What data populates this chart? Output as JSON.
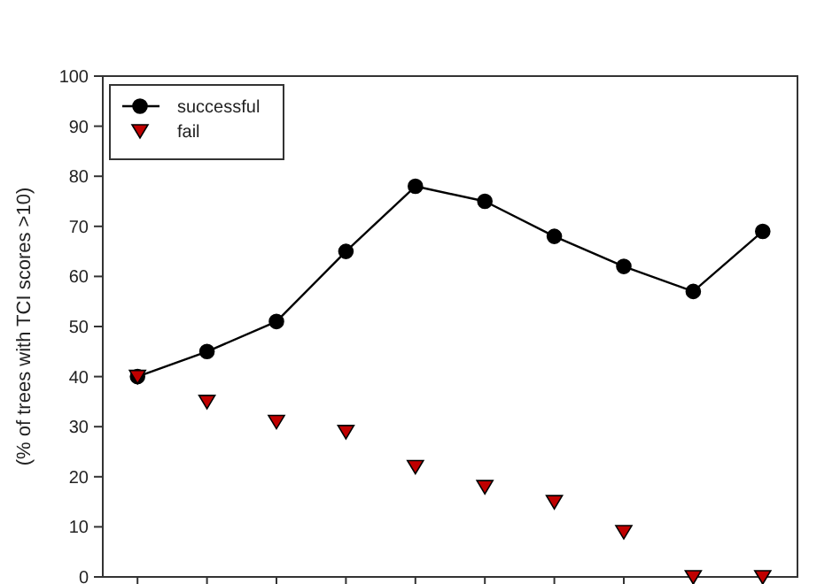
{
  "chart_data": {
    "type": "line",
    "ylabel": "(% of trees with TCI scores >10)",
    "categories": [
      null,
      null,
      null,
      null,
      null,
      null,
      null,
      null,
      null,
      null
    ],
    "ylim": [
      0,
      100
    ],
    "yticks": [
      0,
      10,
      20,
      30,
      40,
      50,
      60,
      70,
      80,
      90,
      100
    ],
    "legend": "top left",
    "grid": false,
    "series": [
      {
        "name": "successful",
        "marker": "circle",
        "color": "#000000",
        "values": [
          40,
          45,
          51,
          65,
          78,
          75,
          68,
          62,
          57,
          69
        ]
      },
      {
        "name": "fail",
        "type": "scatter",
        "marker": "triangle",
        "color": "#c00000",
        "values": [
          40,
          35,
          31,
          29,
          22,
          18,
          15,
          9,
          0,
          0
        ]
      }
    ]
  }
}
